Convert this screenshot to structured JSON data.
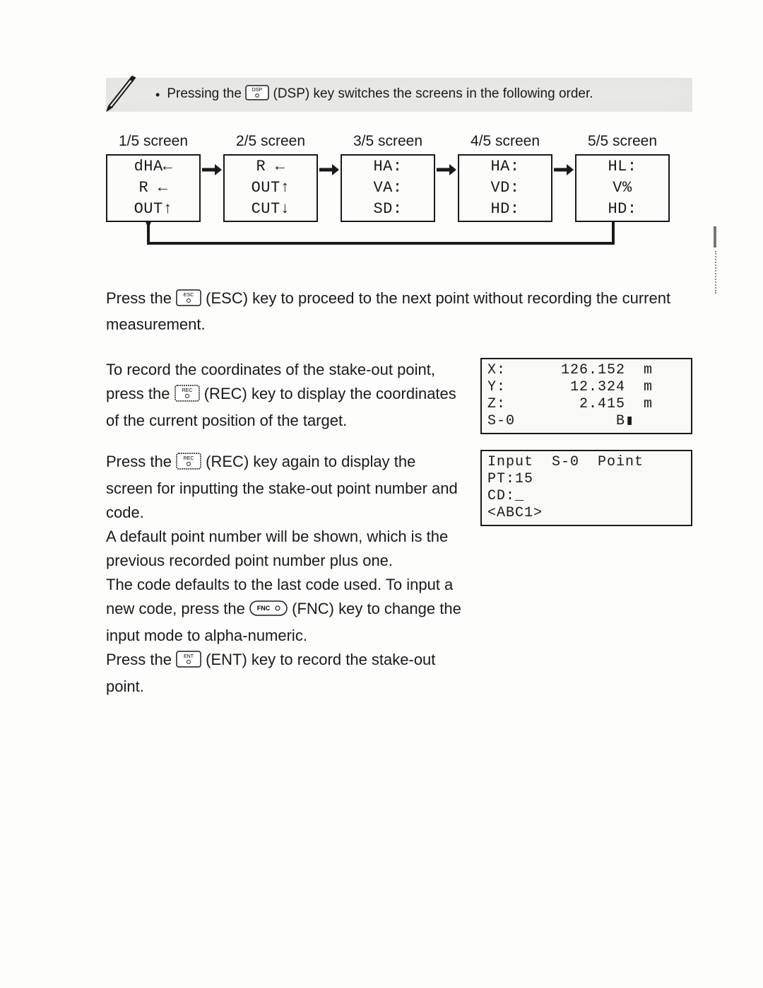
{
  "colors": {
    "text": "#1a1a1a",
    "notebar_bg": "#e9eae7",
    "page_bg": "#fdfdfc",
    "border": "#1a1a1a"
  },
  "notebar": {
    "text_before_key": "Pressing the ",
    "key_label_top": "DSP",
    "key_label_bottom": "○",
    "text_after_key": " (DSP) key switches the screens in the following order."
  },
  "flow": {
    "screens": [
      {
        "title": "1/5 screen",
        "lines": [
          "dHA←",
          "R ←",
          "OUT↑"
        ]
      },
      {
        "title": "2/5 screen",
        "lines": [
          "R ←",
          "OUT↑",
          "CUT↓"
        ]
      },
      {
        "title": "3/5 screen",
        "lines": [
          "HA:",
          "VA:",
          "SD:"
        ]
      },
      {
        "title": "4/5 screen",
        "lines": [
          "HA:",
          "VD:",
          "HD:"
        ]
      },
      {
        "title": "5/5 screen",
        "lines": [
          "HL:",
          "V%",
          "HD:"
        ]
      }
    ]
  },
  "paragraphs": {
    "esc": {
      "before": "Press the ",
      "key_top": "ESC",
      "key_bottom": "○",
      "after": " (ESC) key to proceed to the next point without recording the current measurement."
    },
    "rec1": {
      "l1_before": "To record the coordinates of the stake-out point, press the ",
      "key_top": "REC",
      "key_bottom": "○",
      "l1_after": " (REC) key to display the coordinates of the current position of the target."
    },
    "rec2": {
      "l1_before": "Press the ",
      "key_top": "REC",
      "key_bottom": "○",
      "l1_after": " (REC) key again to display the screen for inputting the stake-out point number and code."
    },
    "tail": {
      "t1": "A default point number will be shown, which is the previous recorded point number plus one.",
      "t2_before": "The code defaults to the last code used. To input a new code, press the ",
      "fnc_label": "FNC ○",
      "t2_after": " (FNC) key to change the input mode to alpha-numeric.",
      "t3_before": "Press the ",
      "ent_top": "ENT",
      "ent_bottom": "○",
      "t3_after": " (ENT) key to record the stake-out point."
    }
  },
  "lcd1": {
    "rows": [
      {
        "label": "X:",
        "value": "126.152",
        "unit": "m"
      },
      {
        "label": "Y:",
        "value": " 12.324",
        "unit": "m"
      },
      {
        "label": "Z:",
        "value": "  2.415",
        "unit": "m"
      }
    ],
    "footer_left": "S-0",
    "footer_right": "B▮"
  },
  "lcd2": {
    "line1": "Input  S-0  Point",
    "line2": "PT:15",
    "line3": "CD:_",
    "line4": "<ABC1>"
  }
}
